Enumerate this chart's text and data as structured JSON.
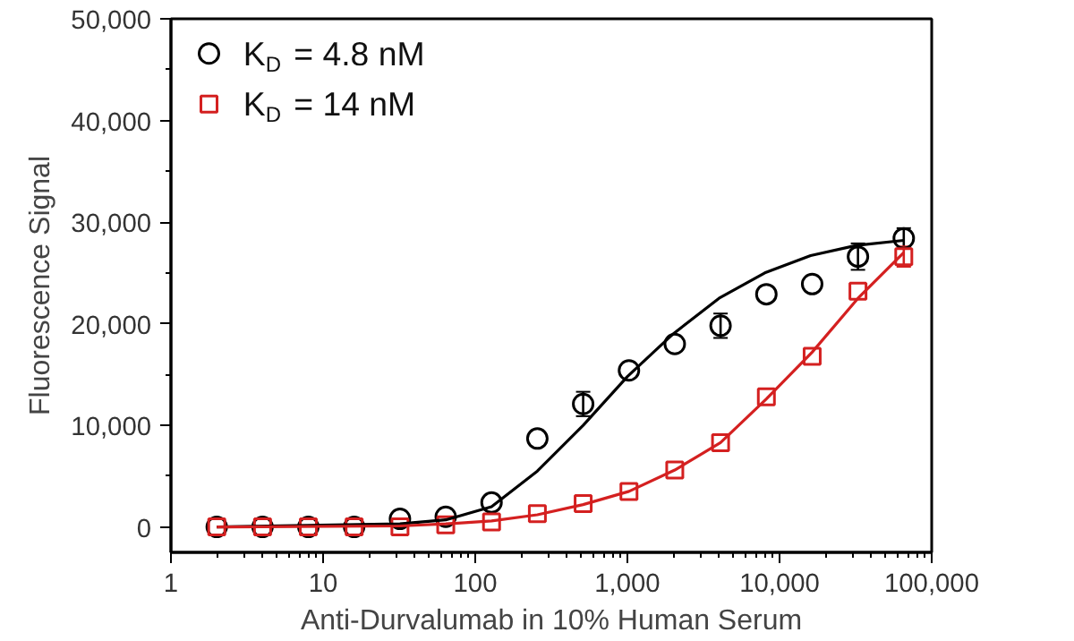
{
  "chart_data": {
    "type": "scatter",
    "xlabel": "Anti-Durvalumab in 10% Human Serum",
    "ylabel": "Fluorescence Signal",
    "x": [
      2,
      4,
      8,
      16,
      32,
      64,
      128,
      256,
      512,
      1024,
      2048,
      4096,
      8192,
      16384,
      32768,
      65536
    ],
    "series": [
      {
        "name": "K$_{D}$ = 4.8 nM",
        "color": "#000000",
        "marker": "circle",
        "values": [
          0,
          0,
          0,
          0,
          800,
          1000,
          2400,
          8700,
          12100,
          15400,
          18000,
          19800,
          22900,
          23900,
          26600,
          28400
        ],
        "errors": [
          null,
          null,
          null,
          null,
          null,
          null,
          null,
          null,
          1200,
          null,
          null,
          1200,
          null,
          null,
          1300,
          1000
        ]
      },
      {
        "name": "K$_{D}$ = 14 nM",
        "color": "#d42020",
        "marker": "square",
        "values": [
          0,
          0,
          0,
          0,
          0,
          200,
          500,
          1300,
          2300,
          3500,
          5600,
          8300,
          12800,
          16800,
          23200,
          26600
        ],
        "errors": [
          null,
          null,
          null,
          null,
          null,
          null,
          null,
          null,
          null,
          null,
          null,
          null,
          null,
          null,
          null,
          1000
        ]
      },
      {
        "type": "line",
        "color": "#000000",
        "x": [
          2,
          32,
          64,
          128,
          256,
          512,
          1000,
          2000,
          4000,
          8000,
          16000,
          32000,
          65536
        ],
        "values": [
          0,
          300,
          700,
          2000,
          5500,
          10000,
          14800,
          19000,
          22500,
          25000,
          26700,
          27700,
          28200
        ]
      },
      {
        "type": "line",
        "color": "#d42020",
        "x": [
          2,
          32,
          64,
          128,
          256,
          512,
          1024,
          2048,
          4096,
          8192,
          16384,
          32768,
          65536
        ],
        "values": [
          0,
          100,
          300,
          600,
          1200,
          2200,
          3500,
          5600,
          8300,
          12600,
          17200,
          22500,
          27000
        ]
      }
    ],
    "log": "x",
    "xlim": [
      1,
      100000
    ],
    "ylim": [
      -2500,
      50000
    ],
    "xticks": [
      {
        "value": 1,
        "label": "1"
      },
      {
        "value": 10,
        "label": "10"
      },
      {
        "value": 100,
        "label": "100"
      },
      {
        "value": 1000,
        "label": "1,000"
      },
      {
        "value": 10000,
        "label": "10,000"
      },
      {
        "value": 100000,
        "label": "100,000"
      }
    ],
    "yticks": [
      {
        "value": 0,
        "label": "0"
      },
      {
        "value": 10000,
        "label": "10,000"
      },
      {
        "value": 20000,
        "label": "20,000"
      },
      {
        "value": 30000,
        "label": "30,000"
      },
      {
        "value": 40000,
        "label": "40,000"
      },
      {
        "value": 50000,
        "label": "50,000"
      }
    ],
    "legend": "top left",
    "grid": false
  }
}
